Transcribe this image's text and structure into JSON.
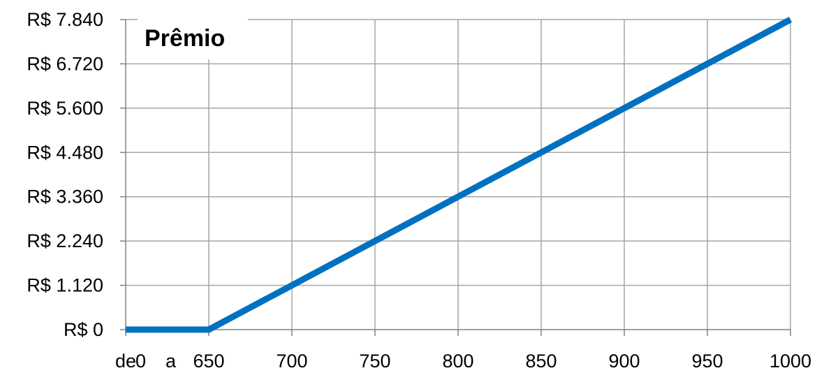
{
  "chart_data": {
    "type": "line",
    "title": "Prêmio",
    "xlabel": "",
    "ylabel": "",
    "categories": [
      "de 0 a 650",
      "700",
      "750",
      "800",
      "850",
      "900",
      "950",
      "1000"
    ],
    "x": [
      650,
      700,
      750,
      800,
      850,
      900,
      950,
      1000
    ],
    "series": [
      {
        "name": "",
        "color": "#0070C0",
        "points": [
          {
            "x": 600,
            "y": 0
          },
          {
            "x": 650,
            "y": 0
          },
          {
            "x": 700,
            "y": 1120
          },
          {
            "x": 750,
            "y": 2240
          },
          {
            "x": 800,
            "y": 3360
          },
          {
            "x": 850,
            "y": 4480
          },
          {
            "x": 900,
            "y": 5600
          },
          {
            "x": 950,
            "y": 6720
          },
          {
            "x": 1000,
            "y": 7840
          }
        ]
      }
    ],
    "xlim": [
      600,
      1000
    ],
    "ylim": [
      0,
      7840
    ],
    "y_ticks": [
      0,
      1120,
      2240,
      3360,
      4480,
      5600,
      6720,
      7840
    ],
    "y_tick_labels": [
      "R$ 0",
      "R$ 1.120",
      "R$ 2.240",
      "R$ 3.360",
      "R$ 4.480",
      "R$ 5.600",
      "R$ 6.720",
      "R$ 7.840"
    ],
    "x_ticks": [
      600,
      650,
      700,
      750,
      800,
      850,
      900,
      950,
      1000
    ],
    "x_tick_labels": [
      {
        "x": 600,
        "label": "de"
      },
      {
        "x": 625,
        "label": "0"
      },
      {
        "x": 625,
        "label": "a"
      },
      {
        "x": 650,
        "label": "650"
      },
      {
        "x": 700,
        "label": "700"
      },
      {
        "x": 750,
        "label": "750"
      },
      {
        "x": 800,
        "label": "800"
      },
      {
        "x": 850,
        "label": "850"
      },
      {
        "x": 900,
        "label": "900"
      },
      {
        "x": 950,
        "label": "950"
      },
      {
        "x": 1000,
        "label": "1000"
      }
    ],
    "grid": true,
    "legend": "none",
    "colors": {
      "line": "#0070C0",
      "grid": "#A6A6A6",
      "axis": "#808080"
    }
  }
}
